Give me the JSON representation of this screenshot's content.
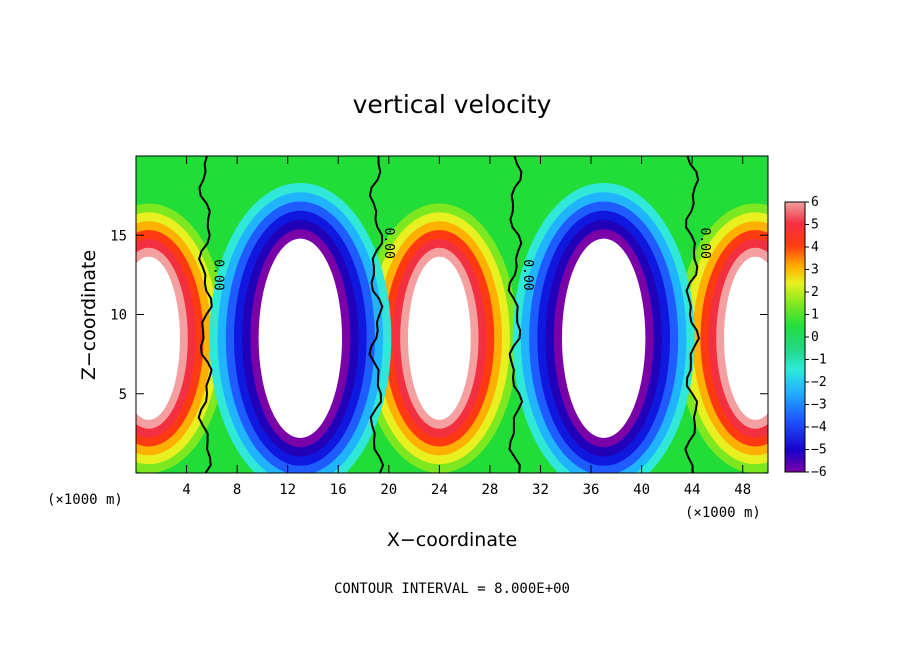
{
  "chart_data": {
    "type": "heatmap",
    "title": "vertical velocity",
    "xlabel": "X−coordinate",
    "ylabel": "Z−coordinate",
    "x_unit_left": "(×1000 m)",
    "x_unit_right": "(×1000 m)",
    "xlim": [
      0,
      50
    ],
    "ylim": [
      0,
      20
    ],
    "x_ticks": [
      "4",
      "8",
      "12",
      "16",
      "20",
      "24",
      "28",
      "32",
      "36",
      "40",
      "44",
      "48"
    ],
    "y_ticks": [
      "5",
      "10",
      "15"
    ],
    "colorbar": {
      "labels": [
        "6",
        "5",
        "4",
        "3",
        "2",
        "1",
        "0",
        "−1",
        "−2",
        "−3",
        "−4",
        "−5",
        "−6"
      ],
      "range": [
        -6,
        6
      ]
    },
    "contour_label": "0.00",
    "contour_interval_text": "CONTOUR INTERVAL = 8.000E+00",
    "updraft_centers_x": [
      1,
      24,
      49
    ],
    "downdraft_centers_x": [
      13,
      37
    ],
    "zero_contour_x": [
      5.5,
      19,
      30,
      44
    ]
  }
}
